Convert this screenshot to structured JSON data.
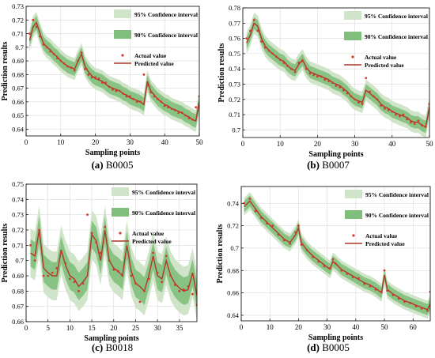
{
  "chart_data": [
    {
      "type": "line",
      "caption_letter": "(a)",
      "caption_name": "B0005",
      "xlabel": "Sampling points",
      "ylabel": "Prediction results",
      "xlim": [
        0,
        50
      ],
      "ylim": [
        0.635,
        0.73
      ],
      "xticks": [
        0,
        10,
        20,
        30,
        40,
        50
      ],
      "yticks": [
        0.64,
        0.65,
        0.66,
        0.67,
        0.68,
        0.69,
        0.7,
        0.71,
        0.72,
        0.73
      ],
      "ytick_labels": [
        "0.64",
        "0.65",
        "0.66",
        "0.67",
        "0.68",
        "0.69",
        "0.7",
        "0.71",
        "0.72",
        "0.73"
      ],
      "grid": true,
      "legend_position": "top-right",
      "legend": {
        "ci95": "95% Confidence interval",
        "ci90": "90% Confidence interval",
        "actual": "Actual value",
        "predicted": "Predicted value"
      },
      "band90_halfwidth": 0.005,
      "band95_halfwidth": 0.008,
      "x": [
        1,
        2,
        3,
        4,
        5,
        6,
        7,
        8,
        9,
        10,
        11,
        12,
        13,
        14,
        15,
        16,
        17,
        18,
        19,
        20,
        21,
        22,
        23,
        24,
        25,
        26,
        27,
        28,
        29,
        30,
        31,
        32,
        33,
        34,
        35,
        36,
        37,
        38,
        39,
        40,
        41,
        42,
        43,
        44,
        45,
        46,
        47,
        48,
        49,
        50
      ],
      "predicted": [
        0.705,
        0.715,
        0.718,
        0.71,
        0.703,
        0.7,
        0.698,
        0.695,
        0.693,
        0.69,
        0.688,
        0.686,
        0.685,
        0.684,
        0.69,
        0.695,
        0.686,
        0.682,
        0.679,
        0.677,
        0.676,
        0.675,
        0.673,
        0.671,
        0.67,
        0.669,
        0.668,
        0.666,
        0.665,
        0.663,
        0.662,
        0.661,
        0.66,
        0.658,
        0.675,
        0.668,
        0.665,
        0.662,
        0.66,
        0.658,
        0.657,
        0.655,
        0.654,
        0.653,
        0.652,
        0.65,
        0.649,
        0.647,
        0.646,
        0.66
      ],
      "actual": [
        0.71,
        0.72,
        0.715,
        0.708,
        0.702,
        0.7,
        0.697,
        0.695,
        0.692,
        0.69,
        0.688,
        0.686,
        0.685,
        0.683,
        0.69,
        0.696,
        0.684,
        0.68,
        0.678,
        0.678,
        0.677,
        0.674,
        0.674,
        0.671,
        0.669,
        0.668,
        0.668,
        0.666,
        0.664,
        0.664,
        0.662,
        0.66,
        0.66,
        0.68,
        0.672,
        0.667,
        0.664,
        0.662,
        0.66,
        0.657,
        0.656,
        0.655,
        0.654,
        0.652,
        0.652,
        0.65,
        0.648,
        0.647,
        0.656,
        0.664
      ]
    },
    {
      "type": "line",
      "caption_letter": "(b)",
      "caption_name": "B0007",
      "xlabel": "Sampling points",
      "ylabel": "Prediction results",
      "xlim": [
        0,
        50
      ],
      "ylim": [
        0.695,
        0.78
      ],
      "xticks": [
        0,
        10,
        20,
        30,
        40,
        50
      ],
      "yticks": [
        0.7,
        0.71,
        0.72,
        0.73,
        0.74,
        0.75,
        0.76,
        0.77,
        0.78
      ],
      "ytick_labels": [
        "0.7",
        "0.71",
        "0.72",
        "0.73",
        "0.74",
        "0.75",
        "0.76",
        "0.77",
        "0.78"
      ],
      "grid": true,
      "legend_position": "top-right",
      "legend": {
        "ci95": "95% Confidence interval",
        "ci90": "90% Confidence interval",
        "actual": "Actual value",
        "predicted": "Predicted value"
      },
      "band90_halfwidth": 0.004,
      "band95_halfwidth": 0.007,
      "x": [
        1,
        2,
        3,
        4,
        5,
        6,
        7,
        8,
        9,
        10,
        11,
        12,
        13,
        14,
        15,
        16,
        17,
        18,
        19,
        20,
        21,
        22,
        23,
        24,
        25,
        26,
        27,
        28,
        29,
        30,
        31,
        32,
        33,
        34,
        35,
        36,
        37,
        38,
        39,
        40,
        41,
        42,
        43,
        44,
        45,
        46,
        47,
        48,
        49,
        50
      ],
      "predicted": [
        0.757,
        0.762,
        0.77,
        0.768,
        0.76,
        0.755,
        0.752,
        0.75,
        0.748,
        0.746,
        0.745,
        0.742,
        0.74,
        0.739,
        0.743,
        0.746,
        0.741,
        0.738,
        0.737,
        0.736,
        0.735,
        0.734,
        0.733,
        0.731,
        0.73,
        0.729,
        0.727,
        0.725,
        0.722,
        0.72,
        0.719,
        0.718,
        0.726,
        0.724,
        0.722,
        0.72,
        0.717,
        0.715,
        0.714,
        0.712,
        0.711,
        0.71,
        0.709,
        0.708,
        0.706,
        0.705,
        0.705,
        0.703,
        0.702,
        0.715
      ],
      "actual": [
        0.76,
        0.765,
        0.772,
        0.765,
        0.758,
        0.754,
        0.752,
        0.75,
        0.748,
        0.746,
        0.744,
        0.742,
        0.74,
        0.738,
        0.744,
        0.745,
        0.74,
        0.737,
        0.736,
        0.735,
        0.735,
        0.733,
        0.732,
        0.731,
        0.729,
        0.728,
        0.726,
        0.724,
        0.722,
        0.72,
        0.718,
        0.717,
        0.734,
        0.725,
        0.722,
        0.72,
        0.716,
        0.714,
        0.713,
        0.712,
        0.71,
        0.709,
        0.71,
        0.707,
        0.705,
        0.704,
        0.706,
        0.703,
        0.702,
        0.717
      ]
    },
    {
      "type": "line",
      "caption_letter": "(c)",
      "caption_name": "B0018",
      "xlabel": "Sampling points",
      "ylabel": "Prediction results",
      "xlim": [
        0,
        39
      ],
      "ylim": [
        0.66,
        0.75
      ],
      "xticks": [
        0,
        5,
        10,
        15,
        20,
        25,
        30,
        35
      ],
      "yticks": [
        0.66,
        0.67,
        0.68,
        0.69,
        0.7,
        0.71,
        0.72,
        0.73,
        0.74,
        0.75
      ],
      "ytick_labels": [
        "0.66",
        "0.67",
        "0.68",
        "0.69",
        "0.7",
        "0.71",
        "0.72",
        "0.73",
        "0.74",
        "0.75"
      ],
      "grid": true,
      "legend_position": "top-right",
      "legend": {
        "ci95": "95% Confidence interval",
        "ci90": "90% Confidence interval",
        "actual": "Actual value",
        "predicted": "Predicted value"
      },
      "band90_halfwidth": 0.009,
      "band95_halfwidth": 0.016,
      "x": [
        1,
        2,
        3,
        4,
        5,
        6,
        7,
        8,
        9,
        10,
        11,
        12,
        13,
        14,
        15,
        16,
        17,
        18,
        19,
        20,
        21,
        22,
        23,
        24,
        25,
        26,
        27,
        28,
        29,
        30,
        31,
        32,
        33,
        34,
        35,
        36,
        37,
        38,
        39
      ],
      "predicted": [
        0.705,
        0.703,
        0.72,
        0.695,
        0.692,
        0.69,
        0.69,
        0.707,
        0.697,
        0.69,
        0.688,
        0.683,
        0.686,
        0.69,
        0.717,
        0.713,
        0.7,
        0.72,
        0.7,
        0.695,
        0.693,
        0.69,
        0.71,
        0.693,
        0.685,
        0.683,
        0.68,
        0.69,
        0.703,
        0.69,
        0.688,
        0.7,
        0.69,
        0.685,
        0.682,
        0.68,
        0.681,
        0.692,
        0.677
      ],
      "actual": [
        0.71,
        0.7,
        0.72,
        0.69,
        0.69,
        0.692,
        0.695,
        0.705,
        0.698,
        0.688,
        0.686,
        0.68,
        0.685,
        0.73,
        0.718,
        0.712,
        0.705,
        0.722,
        0.7,
        0.694,
        0.693,
        0.69,
        0.708,
        0.69,
        0.685,
        0.673,
        0.68,
        0.688,
        0.705,
        0.692,
        0.686,
        0.703,
        0.69,
        0.684,
        0.68,
        0.681,
        0.683,
        0.678,
        0.671
      ]
    },
    {
      "type": "line",
      "caption_letter": "(d)",
      "caption_name": "B0005",
      "xlabel": "Sampling points",
      "ylabel": "Prediction results",
      "xlim": [
        0,
        66
      ],
      "ylim": [
        0.635,
        0.755
      ],
      "xticks": [
        0,
        10,
        20,
        30,
        40,
        50,
        60
      ],
      "yticks": [
        0.64,
        0.66,
        0.68,
        0.7,
        0.72,
        0.74
      ],
      "ytick_labels": [
        "0.64",
        "0.66",
        "0.68",
        "0.7",
        "0.72",
        "0.74"
      ],
      "grid": true,
      "legend_position": "top-right",
      "legend": {
        "ci95": "95% Confidence interval",
        "ci90": "90% Confidence interval",
        "actual": "Actual value",
        "predicted": "Predicted value"
      },
      "band90_halfwidth": 0.005,
      "band95_halfwidth": 0.008,
      "x": [
        1,
        3,
        5,
        7,
        9,
        11,
        13,
        15,
        17,
        19,
        20,
        21,
        23,
        25,
        27,
        29,
        31,
        32,
        33,
        35,
        37,
        39,
        41,
        43,
        45,
        47,
        49,
        50,
        51,
        53,
        55,
        57,
        59,
        61,
        63,
        65,
        66
      ],
      "predicted": [
        0.737,
        0.742,
        0.735,
        0.728,
        0.723,
        0.718,
        0.713,
        0.708,
        0.705,
        0.712,
        0.718,
        0.705,
        0.698,
        0.693,
        0.689,
        0.685,
        0.681,
        0.688,
        0.686,
        0.681,
        0.678,
        0.675,
        0.672,
        0.669,
        0.667,
        0.664,
        0.66,
        0.676,
        0.663,
        0.659,
        0.656,
        0.653,
        0.651,
        0.649,
        0.647,
        0.645,
        0.65
      ],
      "actual": [
        0.74,
        0.744,
        0.733,
        0.727,
        0.722,
        0.72,
        0.712,
        0.707,
        0.704,
        0.714,
        0.72,
        0.703,
        0.698,
        0.692,
        0.688,
        0.684,
        0.682,
        0.69,
        0.686,
        0.68,
        0.677,
        0.674,
        0.673,
        0.668,
        0.666,
        0.663,
        0.661,
        0.68,
        0.662,
        0.658,
        0.655,
        0.652,
        0.651,
        0.648,
        0.646,
        0.644,
        0.661
      ]
    }
  ]
}
